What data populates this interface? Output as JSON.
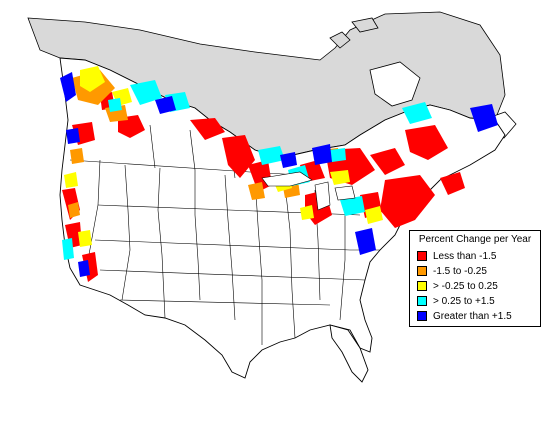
{
  "legend": {
    "title": "Percent Change per Year",
    "items": [
      {
        "label": "Less than -1.5",
        "color": "#ff0000"
      },
      {
        "label": "-1.5 to -0.25",
        "color": "#ff9900"
      },
      {
        "label": "> -0.25 to 0.25",
        "color": "#ffff00"
      },
      {
        "label": "> 0.25 to +1.5",
        "color": "#00ffff"
      },
      {
        "label": "Greater than +1.5",
        "color": "#0000ff"
      }
    ]
  },
  "colors": {
    "no_data_region": "#d9d9d9",
    "land": "#ffffff",
    "boundaries": "#000000"
  }
}
